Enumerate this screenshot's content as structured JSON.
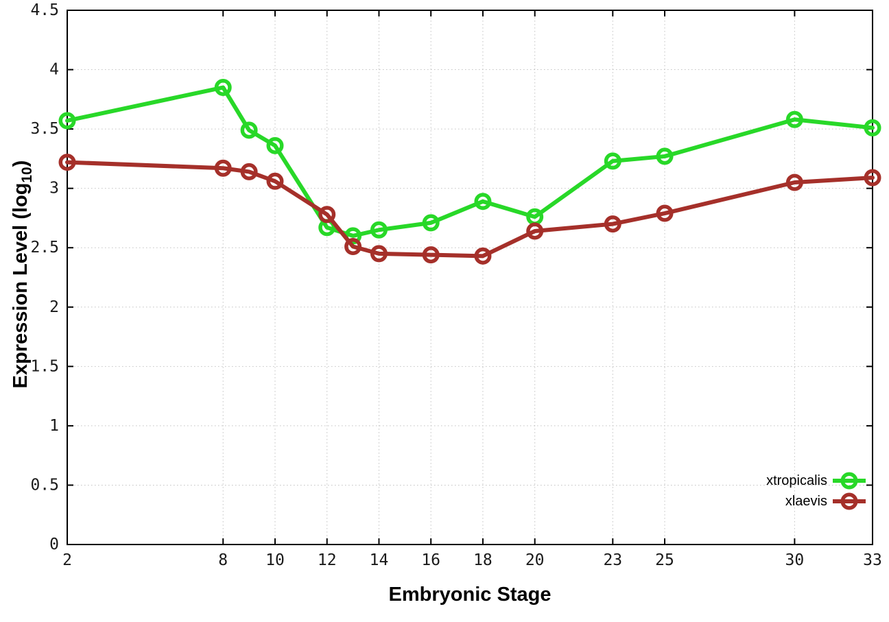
{
  "figure": {
    "background": "#ffffff",
    "border_color": "#000000",
    "grid_color": "#c2c2c2",
    "tick_label_color": "#1a1a1a"
  },
  "labels": {
    "x_title": "Embryonic Stage",
    "y_title_main": "Expression Level (log",
    "y_title_sub": "10",
    "y_title_end": ")"
  },
  "chart_data": {
    "type": "line",
    "title": "",
    "xlabel": "Embryonic Stage",
    "ylabel": "Expression Level (log10)",
    "x": [
      2,
      8,
      9,
      10,
      12,
      13,
      14,
      16,
      18,
      20,
      23,
      25,
      30,
      33
    ],
    "series": [
      {
        "name": "xtropicalis",
        "color": "#28d828",
        "values": [
          3.57,
          3.85,
          3.49,
          3.36,
          2.67,
          2.6,
          2.65,
          2.71,
          2.89,
          2.76,
          3.23,
          3.27,
          3.58,
          3.51
        ]
      },
      {
        "name": "xlaevis",
        "color": "#a5302a",
        "values": [
          3.22,
          3.17,
          3.14,
          3.06,
          2.78,
          2.51,
          2.45,
          2.44,
          2.43,
          2.64,
          2.7,
          2.79,
          3.05,
          3.09
        ]
      }
    ],
    "xlim": [
      2,
      33
    ],
    "ylim": [
      0,
      4.5
    ],
    "x_ticks": [
      "2",
      "8",
      "10",
      "12",
      "14",
      "16",
      "18",
      "20",
      "23",
      "25",
      "30",
      "33"
    ],
    "x_tick_values": [
      2,
      8,
      10,
      12,
      14,
      16,
      18,
      20,
      23,
      25,
      30,
      33
    ],
    "y_ticks": [
      "0",
      "0.5",
      "1",
      "1.5",
      "2",
      "2.5",
      "3",
      "3.5",
      "4",
      "4.5"
    ],
    "y_tick_values": [
      0,
      0.5,
      1,
      1.5,
      2,
      2.5,
      3,
      3.5,
      4,
      4.5
    ],
    "grid": true,
    "legend_position": "bottom-right",
    "marker": "open-circle"
  }
}
